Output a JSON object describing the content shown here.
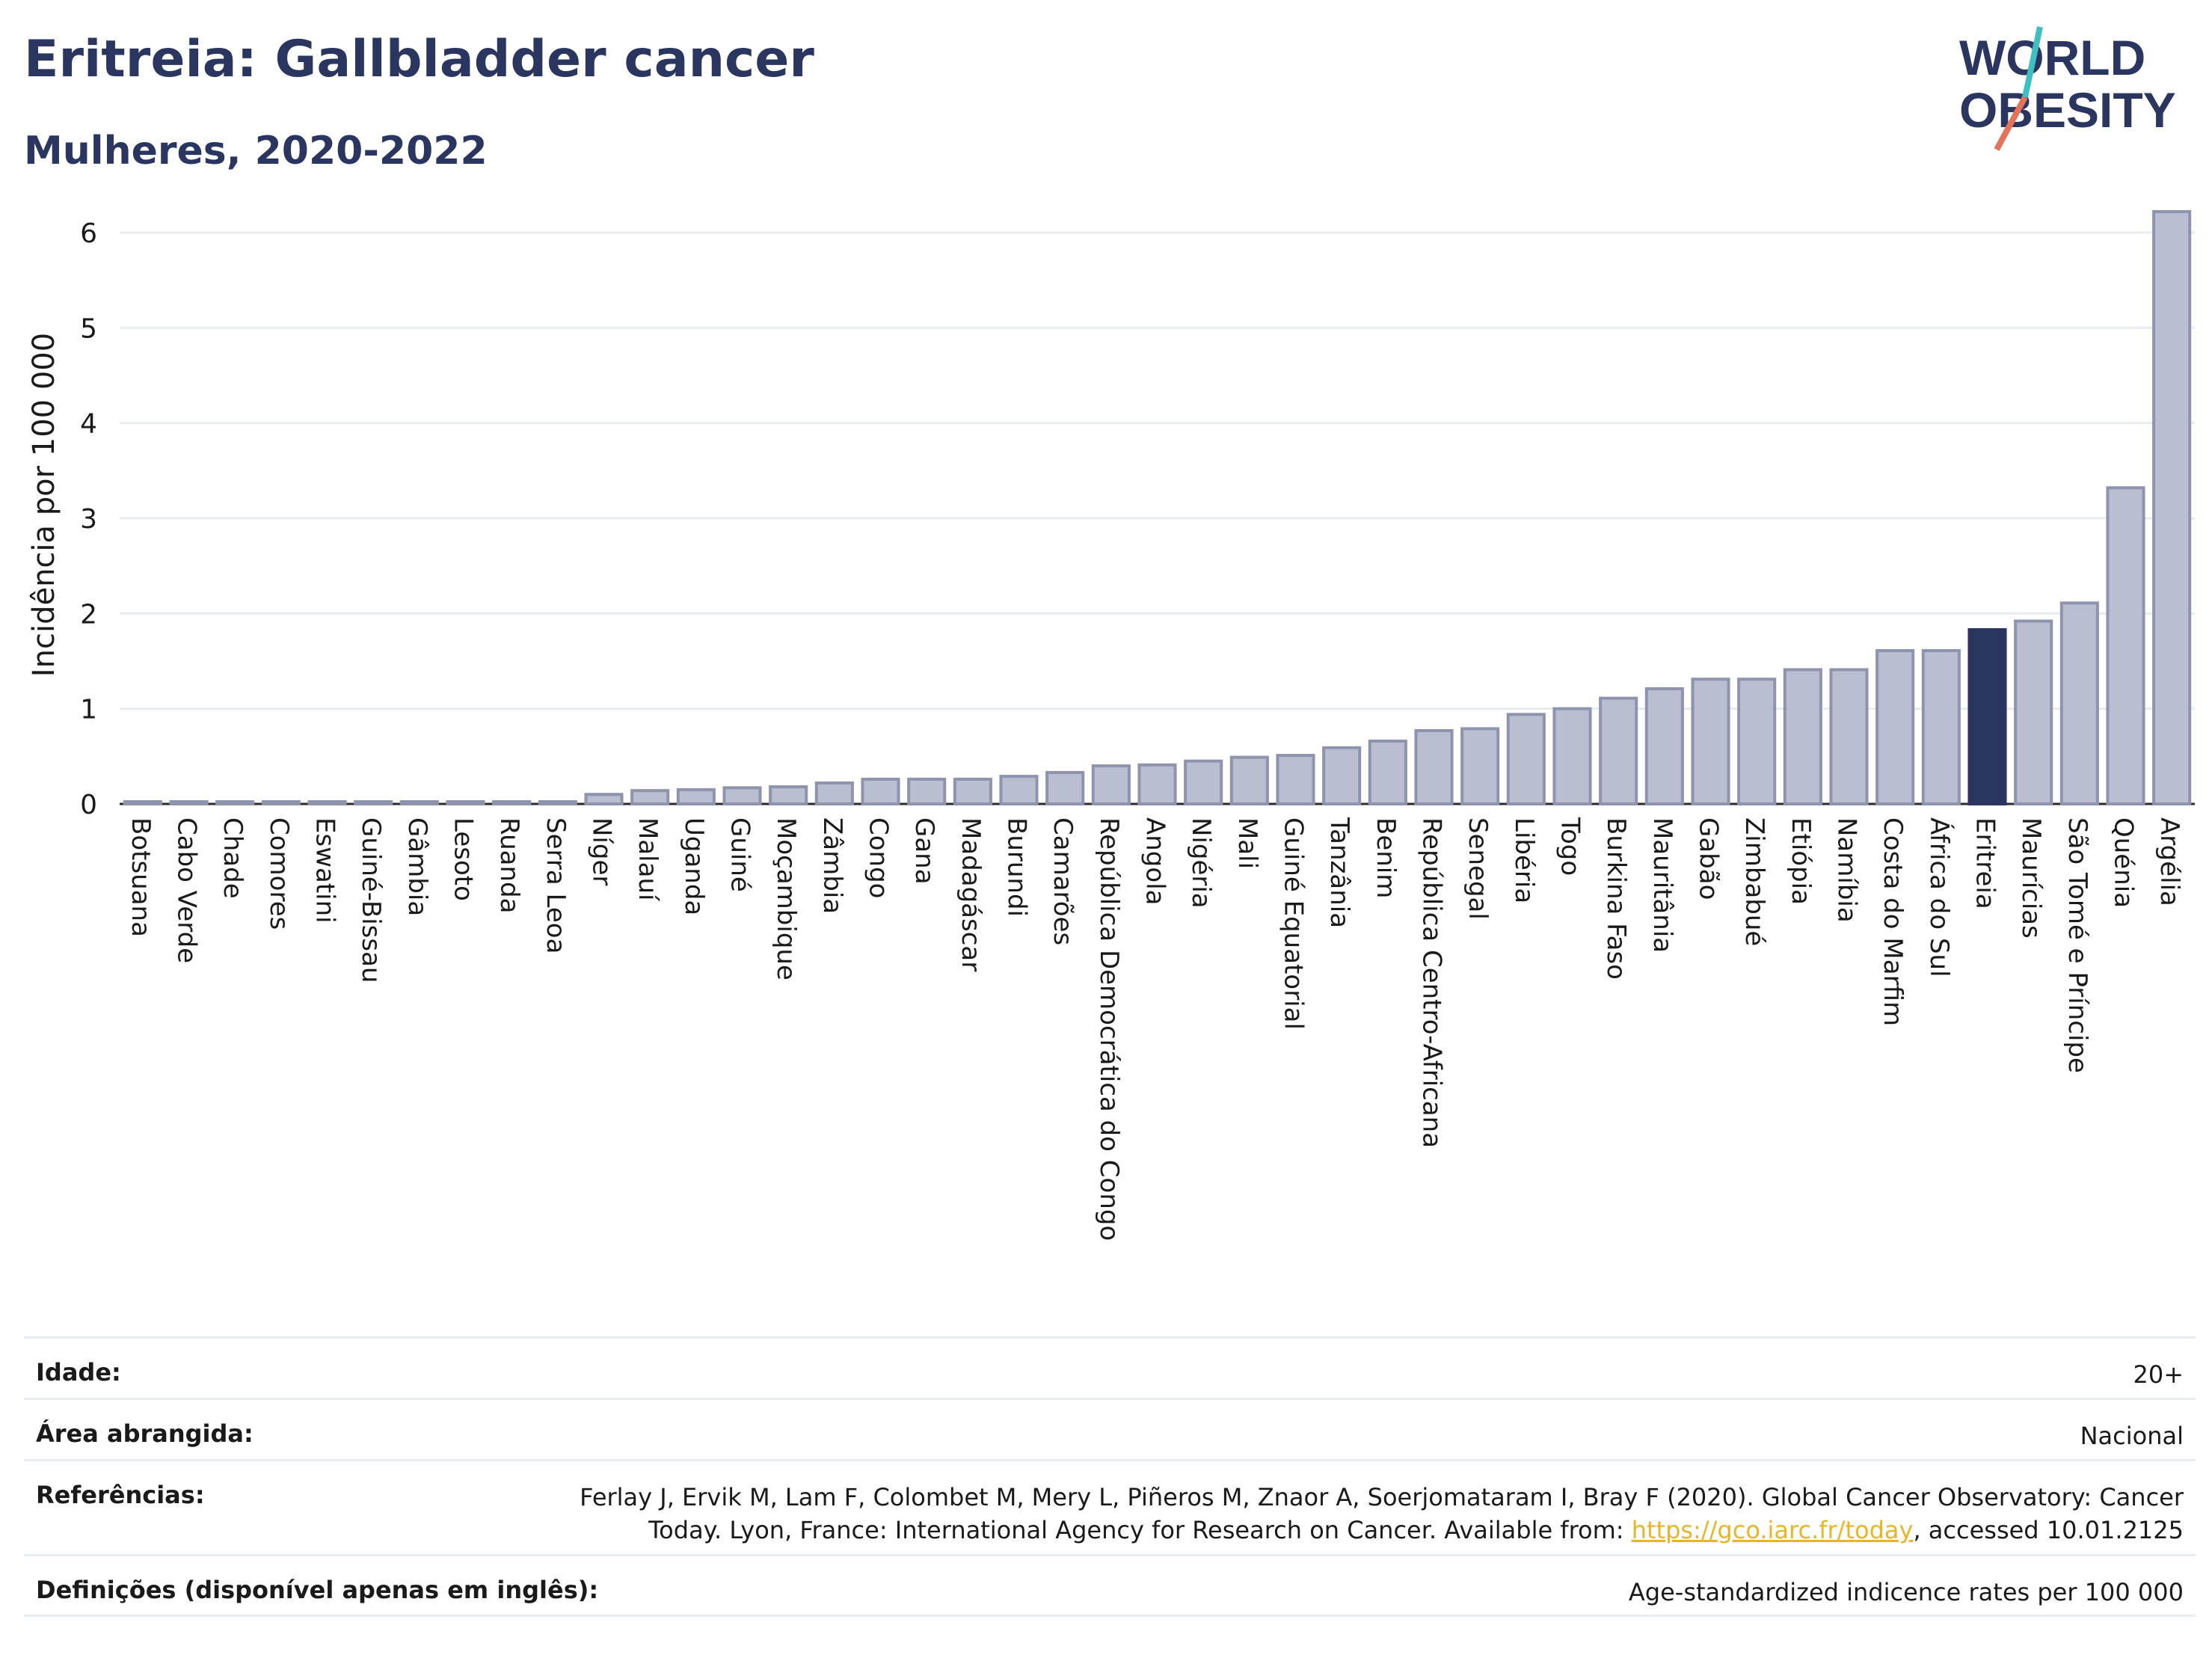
{
  "header": {
    "title": "Eritreia: Gallbladder cancer",
    "subtitle": "Mulheres, 2020-2022"
  },
  "logo": {
    "line1": "WORLD",
    "line2": "OBESITY",
    "colors": [
      "#2a3560",
      "#3fbfbf",
      "#e5735a"
    ]
  },
  "chart_data": {
    "type": "bar",
    "ylabel": "Incidência por 100 000",
    "xlabel": "",
    "ylim": [
      0,
      6.4
    ],
    "yticks": [
      0,
      1,
      2,
      3,
      4,
      5,
      6
    ],
    "grid": true,
    "highlight": "Eritreia",
    "colors": {
      "bar": "#b9bed0",
      "bar_edge": "#8e94ad",
      "highlight": "#2a3560"
    },
    "categories": [
      "Botsuana",
      "Cabo Verde",
      "Chade",
      "Comores",
      "Eswatini",
      "Guiné-Bissau",
      "Gâmbia",
      "Lesoto",
      "Ruanda",
      "Serra Leoa",
      "Níger",
      "Malauí",
      "Uganda",
      "Guiné",
      "Moçambique",
      "Zâmbia",
      "Congo",
      "Gana",
      "Madagáscar",
      "Burundi",
      "Camarões",
      "República Democrática do Congo",
      "Angola",
      "Nigéria",
      "Mali",
      "Guiné Equatorial",
      "Tanzânia",
      "Benim",
      "República Centro-Africana",
      "Senegal",
      "Libéria",
      "Togo",
      "Burkina Faso",
      "Mauritânia",
      "Gabão",
      "Zimbabué",
      "Etiópia",
      "Namíbia",
      "Costa do Marfim",
      "África do Sul",
      "Eritreia",
      "Maurícias",
      "São Tomé e Príncipe",
      "Quénia",
      "Argélia"
    ],
    "values": [
      0.02,
      0.02,
      0.02,
      0.02,
      0.02,
      0.02,
      0.02,
      0.02,
      0.02,
      0.02,
      0.1,
      0.14,
      0.15,
      0.17,
      0.18,
      0.22,
      0.26,
      0.26,
      0.26,
      0.29,
      0.33,
      0.4,
      0.41,
      0.45,
      0.49,
      0.51,
      0.59,
      0.66,
      0.77,
      0.79,
      0.94,
      1.0,
      1.11,
      1.21,
      1.31,
      1.31,
      1.41,
      1.41,
      1.61,
      1.61,
      1.83,
      1.92,
      2.11,
      3.32,
      6.22
    ]
  },
  "meta": {
    "age_label": "Idade:",
    "age_value": "20+",
    "area_label": "Área abrangida:",
    "area_value": "Nacional",
    "ref_label": "Referências:",
    "ref_text_1": "Ferlay J, Ervik M, Lam F, Colombet M, Mery L, Piñeros M, Znaor A, Soerjomataram I, Bray F (2020). Global Cancer Observatory: Cancer",
    "ref_text_2": "Today. Lyon, France: International Agency for Research on Cancer. Available from: ",
    "ref_link": "https://gco.iarc.fr/today",
    "ref_text_3": ", accessed 10.01.2125",
    "def_label": "Definições (disponível apenas em inglês):",
    "def_value": "Age-standardized indicence rates per 100 000"
  }
}
